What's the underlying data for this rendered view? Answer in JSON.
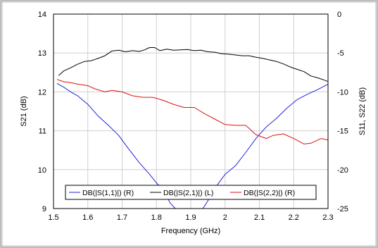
{
  "chart_data": {
    "type": "line",
    "title": "",
    "xlabel": "Frequency (GHz)",
    "ylabel_left": "S21 (dB)",
    "ylabel_right": "S11, S22 (dB)",
    "xlim": [
      1.5,
      2.3
    ],
    "ylim_left": [
      9,
      14
    ],
    "ylim_right": [
      -25,
      0
    ],
    "x_ticks": [
      "1.5",
      "1.6",
      "1.7",
      "1.8",
      "1.9",
      "2",
      "2.1",
      "2.2",
      "2.3"
    ],
    "y_left_ticks": [
      "9",
      "10",
      "11",
      "12",
      "13",
      "14"
    ],
    "y_right_ticks": [
      "-25",
      "-20",
      "-15",
      "-10",
      "-5",
      "0"
    ],
    "grid": true,
    "legend_position": "bottom-center",
    "colors": {
      "s11": "#2222dd",
      "s21": "#000000",
      "s22": "#dd1111",
      "grid": "#cfcfcf"
    },
    "series": [
      {
        "name": "DB(|S(1,1)|) (R)",
        "axis": "right",
        "color": "#2222dd",
        "x": [
          1.51,
          1.53,
          1.55,
          1.57,
          1.6,
          1.63,
          1.66,
          1.69,
          1.72,
          1.75,
          1.78,
          1.8,
          1.82,
          1.84,
          1.855,
          1.87,
          1.88,
          1.89,
          1.9,
          1.91,
          1.92,
          1.935,
          1.95,
          1.96,
          1.98,
          2.0,
          2.03,
          2.06,
          2.09,
          2.12,
          2.15,
          2.18,
          2.21,
          2.24,
          2.27,
          2.3,
          2.33
        ],
        "y": [
          -8.9,
          -9.4,
          -10.0,
          -10.5,
          -11.6,
          -13.1,
          -14.3,
          -15.6,
          -17.4,
          -19.1,
          -20.6,
          -21.7,
          -22.6,
          -24.3,
          -25.0,
          -25.0,
          -25.0,
          -25.0,
          -25.0,
          -25.0,
          -25.0,
          -25.0,
          -24.0,
          -23.0,
          -21.8,
          -20.6,
          -19.5,
          -17.8,
          -16.0,
          -14.5,
          -13.4,
          -12.1,
          -11.0,
          -10.3,
          -9.7,
          -9.0,
          -8.7
        ]
      },
      {
        "name": "DB(|S(2,1)|) (L)",
        "axis": "left",
        "color": "#000000",
        "x": [
          1.515,
          1.53,
          1.55,
          1.57,
          1.59,
          1.61,
          1.63,
          1.65,
          1.67,
          1.69,
          1.71,
          1.73,
          1.75,
          1.765,
          1.78,
          1.795,
          1.81,
          1.83,
          1.85,
          1.87,
          1.89,
          1.91,
          1.93,
          1.95,
          1.97,
          1.99,
          2.01,
          2.03,
          2.05,
          2.07,
          2.09,
          2.11,
          2.13,
          2.15,
          2.17,
          2.19,
          2.21,
          2.23,
          2.25,
          2.27,
          2.29,
          2.31,
          2.33
        ],
        "y": [
          12.42,
          12.54,
          12.62,
          12.71,
          12.78,
          12.8,
          12.86,
          12.93,
          13.05,
          13.07,
          13.03,
          13.06,
          13.04,
          13.08,
          13.14,
          13.14,
          13.06,
          13.1,
          13.07,
          13.08,
          13.09,
          13.06,
          13.07,
          13.03,
          13.02,
          12.98,
          12.97,
          12.95,
          12.93,
          12.93,
          12.89,
          12.86,
          12.82,
          12.78,
          12.72,
          12.64,
          12.58,
          12.52,
          12.41,
          12.36,
          12.3,
          12.23,
          12.11
        ]
      },
      {
        "name": "DB(|S(2,2)|) (R)",
        "axis": "right",
        "color": "#dd1111",
        "x": [
          1.51,
          1.53,
          1.55,
          1.57,
          1.6,
          1.62,
          1.65,
          1.67,
          1.7,
          1.73,
          1.76,
          1.79,
          1.82,
          1.85,
          1.88,
          1.91,
          1.94,
          1.97,
          2.0,
          2.03,
          2.06,
          2.09,
          2.12,
          2.14,
          2.17,
          2.2,
          2.23,
          2.25,
          2.28,
          2.3,
          2.33
        ],
        "y": [
          -8.4,
          -8.7,
          -8.8,
          -9.0,
          -9.2,
          -9.6,
          -10.0,
          -9.8,
          -10.0,
          -10.5,
          -10.7,
          -10.7,
          -11.1,
          -11.6,
          -12.0,
          -12.0,
          -12.8,
          -13.5,
          -14.2,
          -14.3,
          -14.3,
          -15.5,
          -16.0,
          -15.6,
          -15.4,
          -16.0,
          -16.7,
          -16.6,
          -16.0,
          -16.2,
          -17.0
        ]
      }
    ]
  }
}
